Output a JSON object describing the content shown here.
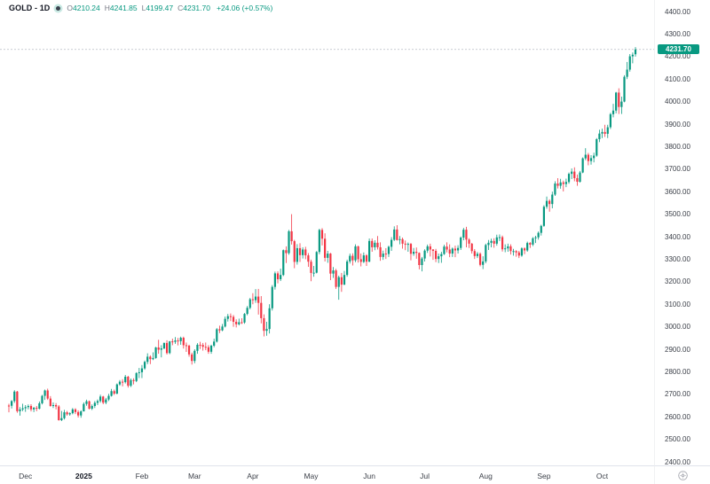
{
  "legend": {
    "symbol": "GOLD - 1D",
    "ohlc": {
      "o_label": "O",
      "o": "4210.24",
      "h_label": "H",
      "h": "4241.85",
      "l_label": "L",
      "l": "4199.47",
      "c_label": "C",
      "c": "4231.70",
      "change": "+24.06 (+0.57%)"
    }
  },
  "colors": {
    "up": "#089981",
    "down": "#f23645",
    "price_line": "#b8bcc4",
    "badge_bg": "#089981",
    "badge_text": "#ffffff",
    "axis_text": "#3c4049",
    "muted_text": "#787b86"
  },
  "price_axis": {
    "ticks": [
      "4400.00",
      "4300.00",
      "4200.00",
      "4100.00",
      "4000.00",
      "3900.00",
      "3800.00",
      "3700.00",
      "3600.00",
      "3500.00",
      "3400.00",
      "3300.00",
      "3200.00",
      "3100.00",
      "3000.00",
      "2900.00",
      "2800.00",
      "2700.00",
      "2600.00",
      "2500.00",
      "2400.00"
    ],
    "badge": {
      "value": "4231.70",
      "price": 4231.7
    }
  },
  "time_axis": {
    "labels": [
      {
        "label": "Dec",
        "index": 6,
        "year": false
      },
      {
        "label": "2025",
        "index": 27,
        "year": true
      },
      {
        "label": "Feb",
        "index": 48,
        "year": false
      },
      {
        "label": "Mar",
        "index": 67,
        "year": false
      },
      {
        "label": "Apr",
        "index": 88,
        "year": false
      },
      {
        "label": "May",
        "index": 109,
        "year": false
      },
      {
        "label": "Jun",
        "index": 130,
        "year": false
      },
      {
        "label": "Jul",
        "index": 150,
        "year": false
      },
      {
        "label": "Aug",
        "index": 172,
        "year": false
      },
      {
        "label": "Sep",
        "index": 193,
        "year": false
      },
      {
        "label": "Oct",
        "index": 214,
        "year": false
      }
    ]
  },
  "corner": {
    "icon": "gear-circle"
  },
  "chart_data": {
    "type": "candlestick",
    "title": "GOLD - 1D",
    "interval": "1D",
    "ylim": [
      2400,
      4400
    ],
    "y_tick_step": 100,
    "grid": false,
    "price_line": 4231.7,
    "last_bar": {
      "open": 4210.24,
      "high": 4241.85,
      "low": 4199.47,
      "close": 4231.7,
      "change": 24.06,
      "change_pct": 0.57
    },
    "month_start_indices": {
      "Dec": 6,
      "Jan2025": 27,
      "Feb": 48,
      "Mar": 67,
      "Apr": 88,
      "May": 109,
      "Jun": 130,
      "Jul": 150,
      "Aug": 172,
      "Sep": 193,
      "Oct": 214
    },
    "candles_format": [
      "open",
      "high",
      "low",
      "close"
    ],
    "candles": [
      [
        2650,
        2658,
        2620,
        2649
      ],
      [
        2649,
        2674,
        2637,
        2670
      ],
      [
        2670,
        2718,
        2662,
        2712
      ],
      [
        2712,
        2715,
        2618,
        2625
      ],
      [
        2625,
        2643,
        2605,
        2633
      ],
      [
        2633,
        2658,
        2625,
        2638
      ],
      [
        2638,
        2652,
        2622,
        2643
      ],
      [
        2643,
        2655,
        2633,
        2648
      ],
      [
        2648,
        2656,
        2624,
        2633
      ],
      [
        2633,
        2644,
        2621,
        2640
      ],
      [
        2640,
        2648,
        2625,
        2636
      ],
      [
        2636,
        2668,
        2633,
        2660
      ],
      [
        2660,
        2697,
        2655,
        2693
      ],
      [
        2693,
        2721,
        2675,
        2717
      ],
      [
        2717,
        2725,
        2675,
        2681
      ],
      [
        2681,
        2692,
        2645,
        2648
      ],
      [
        2648,
        2664,
        2639,
        2652
      ],
      [
        2652,
        2661,
        2633,
        2646
      ],
      [
        2646,
        2652,
        2583,
        2585
      ],
      [
        2585,
        2626,
        2581,
        2594
      ],
      [
        2594,
        2631,
        2588,
        2620
      ],
      [
        2620,
        2626,
        2605,
        2611
      ],
      [
        2611,
        2620,
        2605,
        2616
      ],
      [
        2616,
        2639,
        2611,
        2633
      ],
      [
        2633,
        2638,
        2612,
        2621
      ],
      [
        2621,
        2629,
        2597,
        2606
      ],
      [
        2606,
        2629,
        2596,
        2624
      ],
      [
        2624,
        2664,
        2624,
        2657
      ],
      [
        2657,
        2676,
        2649,
        2669
      ],
      [
        2669,
        2672,
        2633,
        2636
      ],
      [
        2636,
        2655,
        2630,
        2648
      ],
      [
        2648,
        2670,
        2639,
        2662
      ],
      [
        2662,
        2677,
        2652,
        2670
      ],
      [
        2670,
        2698,
        2663,
        2690
      ],
      [
        2690,
        2693,
        2656,
        2663
      ],
      [
        2663,
        2684,
        2656,
        2677
      ],
      [
        2677,
        2702,
        2670,
        2693
      ],
      [
        2693,
        2724,
        2690,
        2714
      ],
      [
        2714,
        2721,
        2697,
        2703
      ],
      [
        2703,
        2748,
        2700,
        2744
      ],
      [
        2744,
        2763,
        2738,
        2756
      ],
      [
        2756,
        2767,
        2735,
        2754
      ],
      [
        2754,
        2786,
        2748,
        2778
      ],
      [
        2778,
        2782,
        2730,
        2738
      ],
      [
        2738,
        2770,
        2732,
        2763
      ],
      [
        2763,
        2771,
        2744,
        2759
      ],
      [
        2759,
        2798,
        2754,
        2794
      ],
      [
        2794,
        2817,
        2772,
        2798
      ],
      [
        2798,
        2830,
        2772,
        2815
      ],
      [
        2815,
        2850,
        2809,
        2844
      ],
      [
        2844,
        2882,
        2834,
        2867
      ],
      [
        2867,
        2873,
        2834,
        2856
      ],
      [
        2856,
        2886,
        2852,
        2861
      ],
      [
        2861,
        2911,
        2858,
        2908
      ],
      [
        2908,
        2942,
        2880,
        2898
      ],
      [
        2898,
        2918,
        2864,
        2904
      ],
      [
        2904,
        2930,
        2900,
        2928
      ],
      [
        2928,
        2940,
        2877,
        2883
      ],
      [
        2883,
        2937,
        2878,
        2935
      ],
      [
        2935,
        2947,
        2918,
        2933
      ],
      [
        2933,
        2954,
        2924,
        2939
      ],
      [
        2939,
        2950,
        2917,
        2936
      ],
      [
        2936,
        2956,
        2920,
        2951
      ],
      [
        2951,
        2956,
        2903,
        2918
      ],
      [
        2918,
        2930,
        2888,
        2916
      ],
      [
        2916,
        2920,
        2867,
        2877
      ],
      [
        2877,
        2885,
        2832,
        2848
      ],
      [
        2848,
        2900,
        2838,
        2893
      ],
      [
        2893,
        2927,
        2880,
        2920
      ],
      [
        2920,
        2933,
        2901,
        2919
      ],
      [
        2919,
        2928,
        2894,
        2911
      ],
      [
        2911,
        2930,
        2896,
        2909
      ],
      [
        2909,
        2918,
        2880,
        2889
      ],
      [
        2889,
        2920,
        2880,
        2916
      ],
      [
        2916,
        2947,
        2909,
        2934
      ],
      [
        2934,
        2994,
        2930,
        2989
      ],
      [
        2989,
        3005,
        2972,
        2984
      ],
      [
        2984,
        3012,
        2980,
        3001
      ],
      [
        3001,
        3045,
        2997,
        3035
      ],
      [
        3035,
        3057,
        3023,
        3047
      ],
      [
        3047,
        3059,
        3025,
        3044
      ],
      [
        3044,
        3052,
        3000,
        3022
      ],
      [
        3022,
        3033,
        2997,
        3011
      ],
      [
        3011,
        3036,
        3006,
        3020
      ],
      [
        3020,
        3038,
        3012,
        3019
      ],
      [
        3019,
        3061,
        3013,
        3057
      ],
      [
        3057,
        3092,
        3051,
        3084
      ],
      [
        3084,
        3128,
        3077,
        3122
      ],
      [
        3122,
        3149,
        3100,
        3118
      ],
      [
        3118,
        3167,
        3106,
        3134
      ],
      [
        3134,
        3168,
        3054,
        3106
      ],
      [
        3106,
        3136,
        3015,
        3038
      ],
      [
        3038,
        3055,
        2957,
        2982
      ],
      [
        2982,
        3022,
        2960,
        2990
      ],
      [
        2990,
        3100,
        2970,
        3082
      ],
      [
        3082,
        3185,
        3072,
        3177
      ],
      [
        3177,
        3245,
        3165,
        3237
      ],
      [
        3237,
        3246,
        3193,
        3211
      ],
      [
        3211,
        3258,
        3203,
        3230
      ],
      [
        3230,
        3343,
        3225,
        3340
      ],
      [
        3340,
        3357,
        3283,
        3327
      ],
      [
        3327,
        3430,
        3320,
        3424
      ],
      [
        3424,
        3500,
        3365,
        3380
      ],
      [
        3380,
        3386,
        3260,
        3288
      ],
      [
        3288,
        3367,
        3276,
        3349
      ],
      [
        3349,
        3371,
        3288,
        3318
      ],
      [
        3318,
        3353,
        3303,
        3343
      ],
      [
        3343,
        3355,
        3300,
        3317
      ],
      [
        3317,
        3327,
        3266,
        3289
      ],
      [
        3289,
        3298,
        3202,
        3239
      ],
      [
        3239,
        3270,
        3222,
        3240
      ],
      [
        3240,
        3336,
        3237,
        3332
      ],
      [
        3332,
        3435,
        3322,
        3430
      ],
      [
        3430,
        3438,
        3361,
        3391
      ],
      [
        3391,
        3415,
        3290,
        3306
      ],
      [
        3306,
        3337,
        3284,
        3325
      ],
      [
        3325,
        3328,
        3207,
        3236
      ],
      [
        3236,
        3265,
        3217,
        3250
      ],
      [
        3250,
        3257,
        3168,
        3177
      ],
      [
        3177,
        3227,
        3120,
        3220
      ],
      [
        3220,
        3239,
        3155,
        3187
      ],
      [
        3187,
        3248,
        3185,
        3230
      ],
      [
        3230,
        3298,
        3222,
        3290
      ],
      [
        3290,
        3325,
        3281,
        3315
      ],
      [
        3315,
        3326,
        3272,
        3295
      ],
      [
        3295,
        3366,
        3287,
        3357
      ],
      [
        3357,
        3360,
        3285,
        3300
      ],
      [
        3300,
        3325,
        3268,
        3288
      ],
      [
        3288,
        3330,
        3283,
        3317
      ],
      [
        3317,
        3322,
        3270,
        3289
      ],
      [
        3289,
        3392,
        3287,
        3381
      ],
      [
        3381,
        3392,
        3333,
        3353
      ],
      [
        3353,
        3384,
        3340,
        3373
      ],
      [
        3373,
        3403,
        3343,
        3353
      ],
      [
        3353,
        3375,
        3293,
        3310
      ],
      [
        3310,
        3338,
        3297,
        3325
      ],
      [
        3325,
        3349,
        3301,
        3323
      ],
      [
        3323,
        3360,
        3310,
        3355
      ],
      [
        3355,
        3398,
        3337,
        3386
      ],
      [
        3386,
        3446,
        3381,
        3432
      ],
      [
        3432,
        3451,
        3383,
        3385
      ],
      [
        3385,
        3403,
        3366,
        3389
      ],
      [
        3389,
        3396,
        3347,
        3369
      ],
      [
        3369,
        3383,
        3340,
        3368
      ],
      [
        3368,
        3374,
        3333,
        3368
      ],
      [
        3368,
        3372,
        3295,
        3324
      ],
      [
        3324,
        3350,
        3315,
        3333
      ],
      [
        3333,
        3352,
        3302,
        3328
      ],
      [
        3328,
        3330,
        3255,
        3274
      ],
      [
        3274,
        3310,
        3246,
        3303
      ],
      [
        3303,
        3344,
        3290,
        3338
      ],
      [
        3338,
        3365,
        3328,
        3357
      ],
      [
        3357,
        3369,
        3312,
        3343
      ],
      [
        3343,
        3345,
        3297,
        3337
      ],
      [
        3337,
        3346,
        3287,
        3301
      ],
      [
        3301,
        3325,
        3283,
        3313
      ],
      [
        3313,
        3333,
        3284,
        3323
      ],
      [
        3323,
        3364,
        3319,
        3356
      ],
      [
        3356,
        3375,
        3330,
        3343
      ],
      [
        3343,
        3366,
        3309,
        3325
      ],
      [
        3325,
        3352,
        3310,
        3347
      ],
      [
        3347,
        3360,
        3309,
        3339
      ],
      [
        3339,
        3362,
        3325,
        3350
      ],
      [
        3350,
        3401,
        3341,
        3396
      ],
      [
        3396,
        3439,
        3384,
        3431
      ],
      [
        3431,
        3444,
        3353,
        3387
      ],
      [
        3387,
        3393,
        3350,
        3369
      ],
      [
        3369,
        3372,
        3325,
        3336
      ],
      [
        3336,
        3345,
        3301,
        3314
      ],
      [
        3314,
        3332,
        3305,
        3324
      ],
      [
        3324,
        3330,
        3268,
        3275
      ],
      [
        3275,
        3313,
        3256,
        3290
      ],
      [
        3290,
        3369,
        3282,
        3363
      ],
      [
        3363,
        3385,
        3341,
        3373
      ],
      [
        3373,
        3391,
        3353,
        3381
      ],
      [
        3381,
        3393,
        3351,
        3369
      ],
      [
        3369,
        3409,
        3360,
        3397
      ],
      [
        3397,
        3410,
        3381,
        3398
      ],
      [
        3398,
        3405,
        3334,
        3344
      ],
      [
        3344,
        3366,
        3331,
        3348
      ],
      [
        3348,
        3369,
        3333,
        3357
      ],
      [
        3357,
        3366,
        3321,
        3336
      ],
      [
        3336,
        3346,
        3316,
        3336
      ],
      [
        3336,
        3340,
        3311,
        3330
      ],
      [
        3330,
        3337,
        3305,
        3316
      ],
      [
        3316,
        3353,
        3311,
        3348
      ],
      [
        3348,
        3353,
        3322,
        3339
      ],
      [
        3339,
        3378,
        3333,
        3372
      ],
      [
        3372,
        3376,
        3350,
        3365
      ],
      [
        3365,
        3398,
        3358,
        3393
      ],
      [
        3393,
        3404,
        3372,
        3397
      ],
      [
        3397,
        3423,
        3387,
        3417
      ],
      [
        3417,
        3453,
        3405,
        3448
      ],
      [
        3448,
        3540,
        3444,
        3533
      ],
      [
        3533,
        3578,
        3524,
        3559
      ],
      [
        3559,
        3566,
        3511,
        3545
      ],
      [
        3545,
        3600,
        3526,
        3587
      ],
      [
        3587,
        3646,
        3581,
        3636
      ],
      [
        3636,
        3660,
        3614,
        3626
      ],
      [
        3626,
        3657,
        3613,
        3641
      ],
      [
        3641,
        3649,
        3601,
        3634
      ],
      [
        3634,
        3658,
        3620,
        3643
      ],
      [
        3643,
        3685,
        3635,
        3679
      ],
      [
        3679,
        3703,
        3656,
        3689
      ],
      [
        3689,
        3708,
        3646,
        3660
      ],
      [
        3660,
        3676,
        3626,
        3644
      ],
      [
        3644,
        3692,
        3640,
        3685
      ],
      [
        3685,
        3752,
        3682,
        3748
      ],
      [
        3748,
        3793,
        3740,
        3764
      ],
      [
        3764,
        3772,
        3717,
        3736
      ],
      [
        3736,
        3762,
        3720,
        3749
      ],
      [
        3749,
        3773,
        3730,
        3760
      ],
      [
        3760,
        3838,
        3755,
        3833
      ],
      [
        3833,
        3875,
        3820,
        3858
      ],
      [
        3858,
        3880,
        3838,
        3865
      ],
      [
        3865,
        3897,
        3843,
        3857
      ],
      [
        3857,
        3897,
        3838,
        3886
      ],
      [
        3886,
        3950,
        3878,
        3944
      ],
      [
        3944,
        3990,
        3930,
        3960
      ],
      [
        3960,
        4043,
        3948,
        4040
      ],
      [
        4040,
        4059,
        3945,
        3976
      ],
      [
        3976,
        4022,
        3945,
        4000
      ],
      [
        4000,
        4117,
        3997,
        4110
      ],
      [
        4110,
        4176,
        4100,
        4142
      ],
      [
        4142,
        4211,
        4133,
        4201
      ],
      [
        4201,
        4218,
        4170,
        4208
      ],
      [
        4210.24,
        4241.85,
        4199.47,
        4231.7
      ]
    ]
  }
}
